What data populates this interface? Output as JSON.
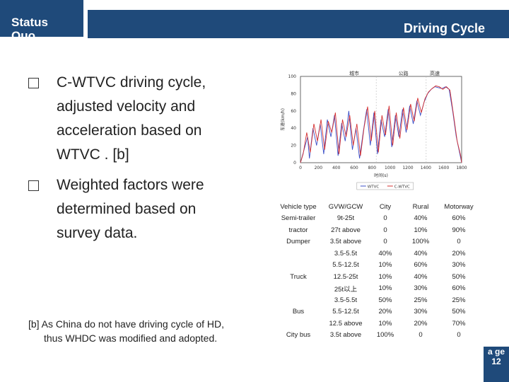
{
  "header": {
    "section": "Status Quo",
    "title": "Driving Cycle"
  },
  "bullets": [
    {
      "lines": [
        "C-WTVC driving cycle,",
        "adjusted velocity and",
        "acceleration based on",
        "WTVC . [b]"
      ]
    },
    {
      "lines": [
        "Weighted factors were",
        "determined based on",
        "survey data."
      ]
    }
  ],
  "footnote": {
    "line1": "[b] As China do not have driving cycle of HD,",
    "line2": "thus WHDC was modified and adopted."
  },
  "chart_data": {
    "type": "line",
    "title": "",
    "segment_labels": [
      "城市",
      "公路",
      "高速"
    ],
    "xlabel": "时间(s)",
    "ylabel": "车速(km/h)",
    "xlim": [
      0,
      1800
    ],
    "ylim": [
      0,
      100
    ],
    "x_ticks": [
      "0",
      "200",
      "400",
      "600",
      "800",
      "1000",
      "1200",
      "1400",
      "1600",
      "1800"
    ],
    "y_ticks": [
      "0",
      "20",
      "40",
      "60",
      "80",
      "100"
    ],
    "legend": [
      "WTVC",
      "C-WTVC"
    ],
    "series": [
      {
        "name": "WTVC",
        "color": "#3b4fc8",
        "x": [
          0,
          40,
          80,
          100,
          140,
          180,
          220,
          260,
          300,
          340,
          380,
          420,
          460,
          500,
          540,
          580,
          620,
          660,
          700,
          740,
          780,
          820,
          860,
          900,
          940,
          980,
          1020,
          1060,
          1100,
          1140,
          1180,
          1220,
          1260,
          1300,
          1340,
          1380,
          1420,
          1460,
          1500,
          1540,
          1580,
          1620,
          1660,
          1700,
          1740,
          1780,
          1800
        ],
        "y": [
          0,
          15,
          30,
          5,
          40,
          20,
          45,
          10,
          50,
          30,
          55,
          8,
          46,
          25,
          60,
          15,
          40,
          5,
          35,
          62,
          20,
          58,
          10,
          50,
          30,
          62,
          18,
          55,
          30,
          62,
          35,
          66,
          45,
          72,
          55,
          70,
          80,
          85,
          88,
          87,
          86,
          88,
          85,
          60,
          30,
          10,
          0
        ]
      },
      {
        "name": "C-WTVC",
        "color": "#d63030",
        "x": [
          0,
          30,
          70,
          110,
          150,
          190,
          230,
          270,
          310,
          350,
          390,
          430,
          470,
          510,
          550,
          590,
          630,
          670,
          710,
          750,
          790,
          830,
          870,
          910,
          950,
          990,
          1030,
          1070,
          1110,
          1150,
          1190,
          1230,
          1270,
          1310,
          1350,
          1390,
          1430,
          1470,
          1510,
          1550,
          1590,
          1630,
          1670,
          1710,
          1750,
          1790,
          1800
        ],
        "y": [
          0,
          10,
          35,
          12,
          45,
          25,
          50,
          15,
          48,
          35,
          58,
          10,
          50,
          30,
          55,
          20,
          45,
          8,
          40,
          65,
          25,
          60,
          12,
          55,
          32,
          66,
          20,
          58,
          28,
          64,
          38,
          68,
          48,
          75,
          58,
          74,
          82,
          86,
          89,
          88,
          85,
          88,
          84,
          55,
          25,
          8,
          0
        ]
      }
    ]
  },
  "table": {
    "headers": [
      "Vehicle type",
      "GVW/GCW",
      "City",
      "Rural",
      "Motorway"
    ],
    "rows": [
      {
        "vt": "Semi-trailer",
        "g": "9t-25t",
        "c": "0",
        "r": "40%",
        "m": "60%"
      },
      {
        "vt": "tractor",
        "g": "27t above",
        "c": "0",
        "r": "10%",
        "m": "90%"
      },
      {
        "vt": "Dumper",
        "g": "3.5t above",
        "c": "0",
        "r": "100%",
        "m": "0"
      },
      {
        "vt": "",
        "g": "3.5-5.5t",
        "c": "40%",
        "r": "40%",
        "m": "20%"
      },
      {
        "vt": "",
        "g": "5.5-12.5t",
        "c": "10%",
        "r": "60%",
        "m": "30%"
      },
      {
        "vt": "Truck",
        "g": "12.5-25t",
        "c": "10%",
        "r": "40%",
        "m": "50%"
      },
      {
        "vt": "",
        "g": "25t以上",
        "c": "10%",
        "r": "30%",
        "m": "60%"
      },
      {
        "vt": "",
        "g": "3.5-5.5t",
        "c": "50%",
        "r": "25%",
        "m": "25%"
      },
      {
        "vt": "Bus",
        "g": "5.5-12.5t",
        "c": "20%",
        "r": "30%",
        "m": "50%"
      },
      {
        "vt": "",
        "g": "12.5 above",
        "c": "10%",
        "r": "20%",
        "m": "70%"
      },
      {
        "vt": "City bus",
        "g": "3.5t above",
        "c": "100%",
        "r": "0",
        "m": "0"
      }
    ]
  },
  "page_label": "a ge 12"
}
